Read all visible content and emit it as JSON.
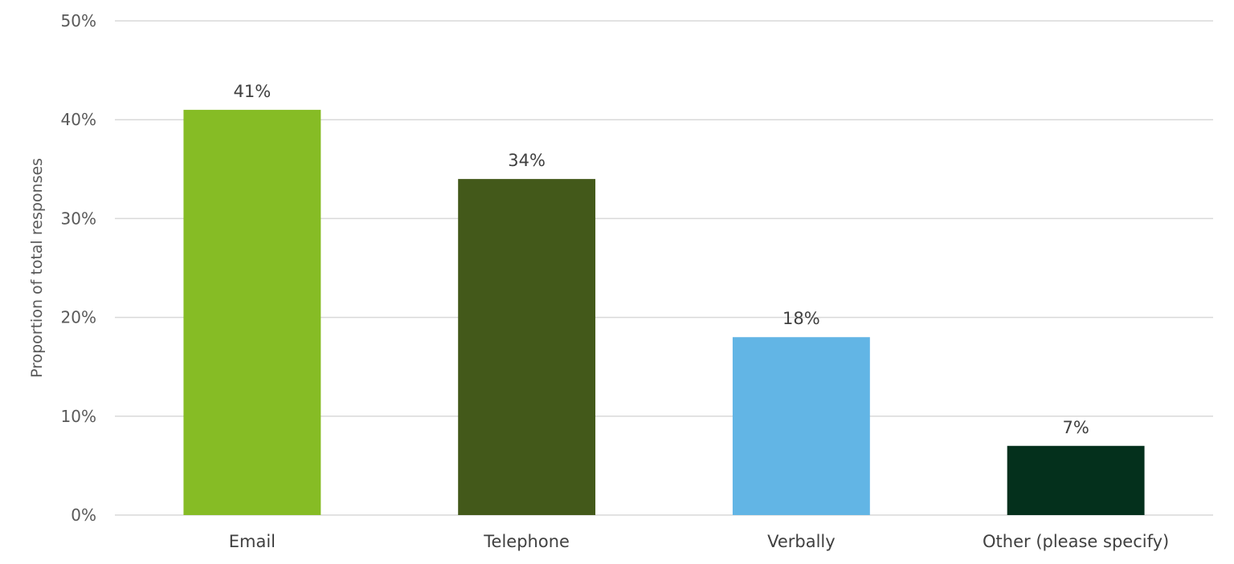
{
  "chart_data": {
    "type": "bar",
    "categories": [
      "Email",
      "Telephone",
      "Verbally",
      "Other (please specify)"
    ],
    "values": [
      41,
      34,
      18,
      7
    ],
    "data_labels": [
      "41%",
      "34%",
      "18%",
      "7%"
    ],
    "colors": [
      "#86bc25",
      "#43591a",
      "#62b5e5",
      "#04301c"
    ],
    "ylabel": "Proportion of total responses",
    "ylim": [
      0,
      50
    ],
    "yticks": [
      0,
      10,
      20,
      30,
      40,
      50
    ],
    "ytick_labels": [
      "0%",
      "10%",
      "20%",
      "30%",
      "40%",
      "50%"
    ],
    "grid": true,
    "legend": "none"
  }
}
